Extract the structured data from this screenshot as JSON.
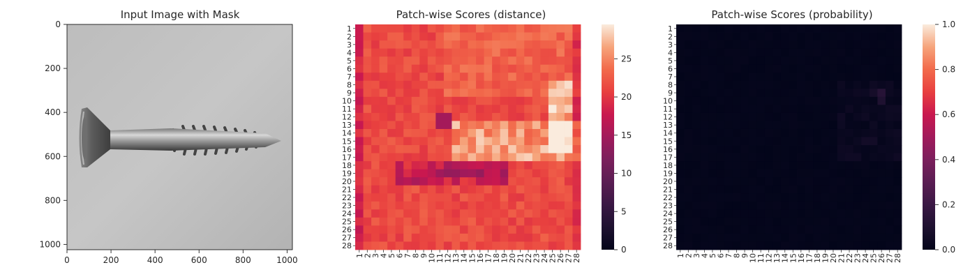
{
  "chart_data": [
    {
      "type": "image",
      "title": "Input Image with Mask",
      "xticks": [
        "0",
        "200",
        "400",
        "600",
        "800",
        "1000"
      ],
      "yticks": [
        "0",
        "200",
        "400",
        "600",
        "800",
        "1000"
      ],
      "xlim": [
        0,
        1024
      ],
      "ylim": [
        1024,
        0
      ],
      "image_content": "grayscale photograph of a screw"
    },
    {
      "type": "heatmap",
      "title": "Patch-wise Scores (distance)",
      "rows": [
        "1",
        "2",
        "3",
        "4",
        "5",
        "6",
        "7",
        "8",
        "9",
        "10",
        "11",
        "12",
        "13",
        "14",
        "15",
        "16",
        "17",
        "18",
        "19",
        "20",
        "21",
        "22",
        "23",
        "24",
        "25",
        "26",
        "27",
        "28"
      ],
      "cols": [
        "1",
        "2",
        "3",
        "4",
        "5",
        "6",
        "7",
        "8",
        "9",
        "10",
        "11",
        "12",
        "13",
        "14",
        "15",
        "16",
        "17",
        "18",
        "19",
        "20",
        "21",
        "22",
        "23",
        "24",
        "25",
        "26",
        "27",
        "28"
      ],
      "colorbar_ticks": [
        "0",
        "5",
        "10",
        "15",
        "20",
        "25"
      ],
      "colorbar_range": [
        0,
        29.5
      ],
      "colormap": "rocket",
      "value_range_shown": [
        12,
        29
      ]
    },
    {
      "type": "heatmap",
      "title": "Patch-wise Scores (probability)",
      "rows": [
        "1",
        "2",
        "3",
        "4",
        "5",
        "6",
        "7",
        "8",
        "9",
        "10",
        "11",
        "12",
        "13",
        "14",
        "15",
        "16",
        "17",
        "18",
        "19",
        "20",
        "21",
        "22",
        "23",
        "24",
        "25",
        "26",
        "27",
        "28"
      ],
      "cols": [
        "1",
        "2",
        "3",
        "4",
        "5",
        "6",
        "7",
        "8",
        "9",
        "10",
        "11",
        "12",
        "13",
        "14",
        "15",
        "16",
        "17",
        "18",
        "19",
        "20",
        "21",
        "22",
        "23",
        "24",
        "25",
        "26",
        "27",
        "28"
      ],
      "colorbar_ticks": [
        "0.0",
        "0.2",
        "0.4",
        "0.6",
        "0.8",
        "1.0"
      ],
      "colorbar_range": [
        0,
        1
      ],
      "colormap": "rocket",
      "value_range_shown": [
        0,
        0.12
      ]
    }
  ]
}
